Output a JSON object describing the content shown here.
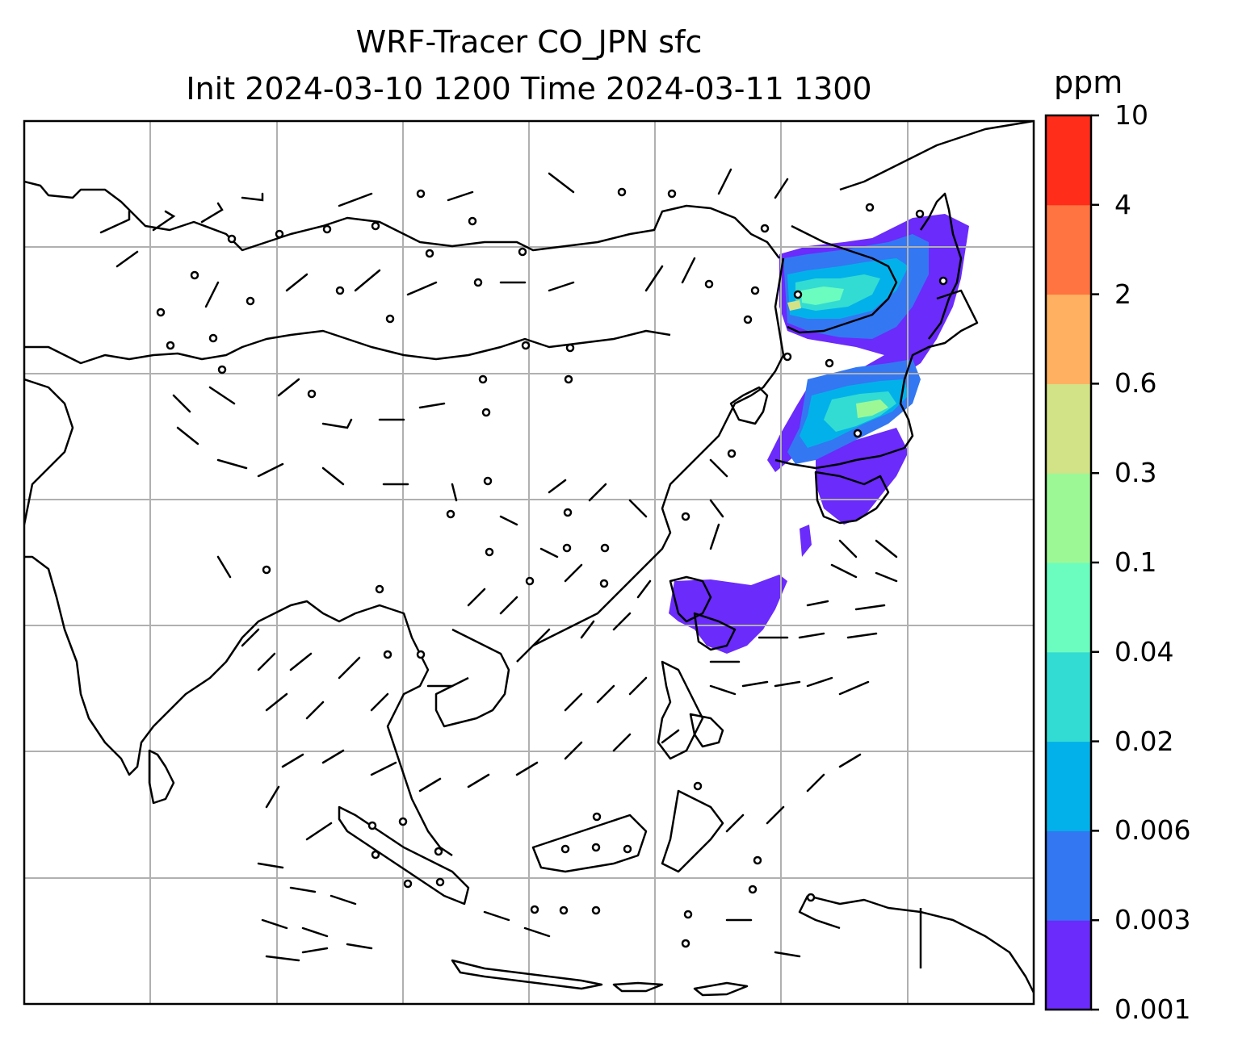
{
  "title": {
    "line1": "WRF-Tracer CO_JPN sfc",
    "line2": "Init 2024-03-10 1200 Time 2024-03-11 1300"
  },
  "colorbar": {
    "unit": "ppm",
    "labels": [
      "0.001",
      "0.003",
      "0.006",
      "0.02",
      "0.04",
      "0.1",
      "0.3",
      "0.6",
      "2",
      "4",
      "10"
    ],
    "colors": [
      "#6a2bfb",
      "#3377f2",
      "#03b1ea",
      "#33dcd2",
      "#6bfcbf",
      "#9cf895",
      "#d2e286",
      "#ffb060",
      "#ff7440",
      "#ff2d1a"
    ]
  },
  "map": {
    "frame_color": "#000000",
    "grid_color": "#b0b0b0",
    "coastline_color": "#000000",
    "field": "CO tracer surface concentration",
    "wind_symbol": "wind-barb"
  }
}
